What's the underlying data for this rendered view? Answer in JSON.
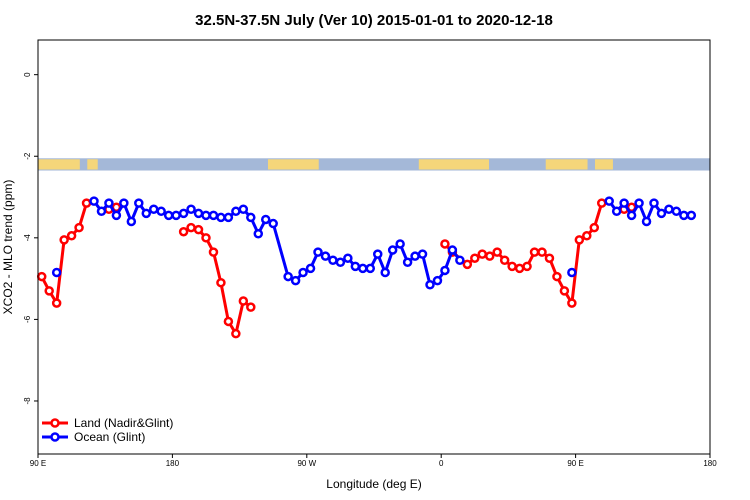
{
  "chart_data": {
    "type": "line",
    "title": "32.5N-37.5N July (Ver 10)   2015-01-01 to 2020-12-18",
    "xlabel": "Longitude (deg E)",
    "ylabel": "XCO2 - MLO trend (ppm)",
    "xlim": [
      90,
      540
    ],
    "ylim": [
      -9.3,
      0.85
    ],
    "x_ticks": [
      {
        "value": 90,
        "label": "90 E"
      },
      {
        "value": 180,
        "label": "180"
      },
      {
        "value": 270,
        "label": "90 W"
      },
      {
        "value": 360,
        "label": "0"
      },
      {
        "value": 450,
        "label": "90 E"
      },
      {
        "value": 540,
        "label": "180"
      }
    ],
    "y_ticks": [
      {
        "value": 0,
        "label": "0"
      },
      {
        "value": -2,
        "label": "-2"
      },
      {
        "value": -4,
        "label": "-4"
      },
      {
        "value": -6,
        "label": "-6"
      },
      {
        "value": -8,
        "label": "-8"
      }
    ],
    "legend_position": "bottom-left",
    "map_strip": {
      "y_top": -2.05,
      "y_bottom": -2.35,
      "ocean_color": "#a4b8d8",
      "land_color": "#f5d67a"
    },
    "series": [
      {
        "name": "Land (Nadir&Glint)",
        "color": "#ff0000",
        "points": [
          [
            92.5,
            -4.95
          ],
          [
            97.5,
            -5.3
          ],
          [
            102.5,
            -5.6
          ],
          [
            107.5,
            -4.05
          ],
          [
            112.5,
            -3.95
          ],
          [
            117.5,
            -3.75
          ],
          [
            122.5,
            -3.15
          ],
          [
            137.5,
            -3.3
          ],
          [
            142.5,
            -3.25
          ],
          [
            187.5,
            -3.85
          ],
          [
            192.5,
            -3.75
          ],
          [
            197.5,
            -3.8
          ],
          [
            202.5,
            -4.0
          ],
          [
            207.5,
            -4.35
          ],
          [
            212.5,
            -5.1
          ],
          [
            217.5,
            -6.05
          ],
          [
            222.5,
            -6.35
          ],
          [
            227.5,
            -5.55
          ],
          [
            232.5,
            -5.7
          ],
          [
            [
              362.5
            ],
            [
              -4.15
            ]
          ],
          [
            367.5,
            -4.35
          ],
          [
            377.5,
            -4.65
          ],
          [
            382.5,
            -4.5
          ],
          [
            387.5,
            -4.4
          ],
          [
            392.5,
            -4.45
          ],
          [
            397.5,
            -4.35
          ],
          [
            402.5,
            -4.55
          ],
          [
            407.5,
            -4.7
          ],
          [
            412.5,
            -4.75
          ],
          [
            417.5,
            -4.7
          ],
          [
            422.5,
            -4.35
          ],
          [
            427.5,
            -4.35
          ],
          [
            432.5,
            -4.5
          ],
          [
            437.5,
            -4.95
          ],
          [
            442.5,
            -5.3
          ],
          [
            447.5,
            -5.6
          ],
          [
            452.5,
            -4.05
          ],
          [
            457.5,
            -3.95
          ],
          [
            462.5,
            -3.75
          ],
          [
            467.5,
            -3.15
          ],
          [
            482.5,
            -3.3
          ],
          [
            487.5,
            -3.25
          ]
        ]
      },
      {
        "name": "Ocean (Glint)",
        "color": "#0000ff",
        "points": [
          [
            102.5,
            -4.85
          ],
          [
            127.5,
            -3.1
          ],
          [
            132.5,
            -3.35
          ],
          [
            137.5,
            -3.15
          ],
          [
            142.5,
            -3.45
          ],
          [
            147.5,
            -3.15
          ],
          [
            152.5,
            -3.6
          ],
          [
            157.5,
            -3.15
          ],
          [
            162.5,
            -3.4
          ],
          [
            167.5,
            -3.3
          ],
          [
            172.5,
            -3.35
          ],
          [
            177.5,
            -3.45
          ],
          [
            182.5,
            -3.45
          ],
          [
            187.5,
            -3.4
          ],
          [
            192.5,
            -3.3
          ],
          [
            197.5,
            -3.4
          ],
          [
            202.5,
            -3.45
          ],
          [
            207.5,
            -3.45
          ],
          [
            212.5,
            -3.5
          ],
          [
            217.5,
            -3.5
          ],
          [
            222.5,
            -3.35
          ],
          [
            227.5,
            -3.3
          ],
          [
            232.5,
            -3.5
          ],
          [
            237.5,
            -3.9
          ],
          [
            242.5,
            -3.55
          ],
          [
            247.5,
            -3.65
          ],
          [
            257.5,
            -4.95
          ],
          [
            262.5,
            -5.05
          ],
          [
            267.5,
            -4.85
          ],
          [
            272.5,
            -4.75
          ],
          [
            277.5,
            -4.35
          ],
          [
            282.5,
            -4.45
          ],
          [
            287.5,
            -4.55
          ],
          [
            292.5,
            -4.6
          ],
          [
            297.5,
            -4.5
          ],
          [
            302.5,
            -4.7
          ],
          [
            307.5,
            -4.75
          ],
          [
            312.5,
            -4.75
          ],
          [
            317.5,
            -4.4
          ],
          [
            322.5,
            -4.85
          ],
          [
            327.5,
            -4.3
          ],
          [
            332.5,
            -4.15
          ],
          [
            337.5,
            -4.6
          ],
          [
            342.5,
            -4.45
          ],
          [
            347.5,
            -4.4
          ],
          [
            352.5,
            -5.15
          ],
          [
            357.5,
            -5.05
          ],
          [
            362.5,
            -4.8
          ],
          [
            367.5,
            -4.3
          ],
          [
            372.5,
            -4.55
          ],
          [
            447.5,
            -4.85
          ],
          [
            472.5,
            -3.1
          ],
          [
            477.5,
            -3.35
          ],
          [
            482.5,
            -3.15
          ],
          [
            487.5,
            -3.45
          ],
          [
            492.5,
            -3.15
          ],
          [
            497.5,
            -3.6
          ],
          [
            502.5,
            -3.15
          ],
          [
            507.5,
            -3.4
          ],
          [
            512.5,
            -3.3
          ],
          [
            517.5,
            -3.35
          ],
          [
            522.5,
            -3.45
          ],
          [
            527.5,
            -3.45
          ]
        ]
      }
    ]
  }
}
